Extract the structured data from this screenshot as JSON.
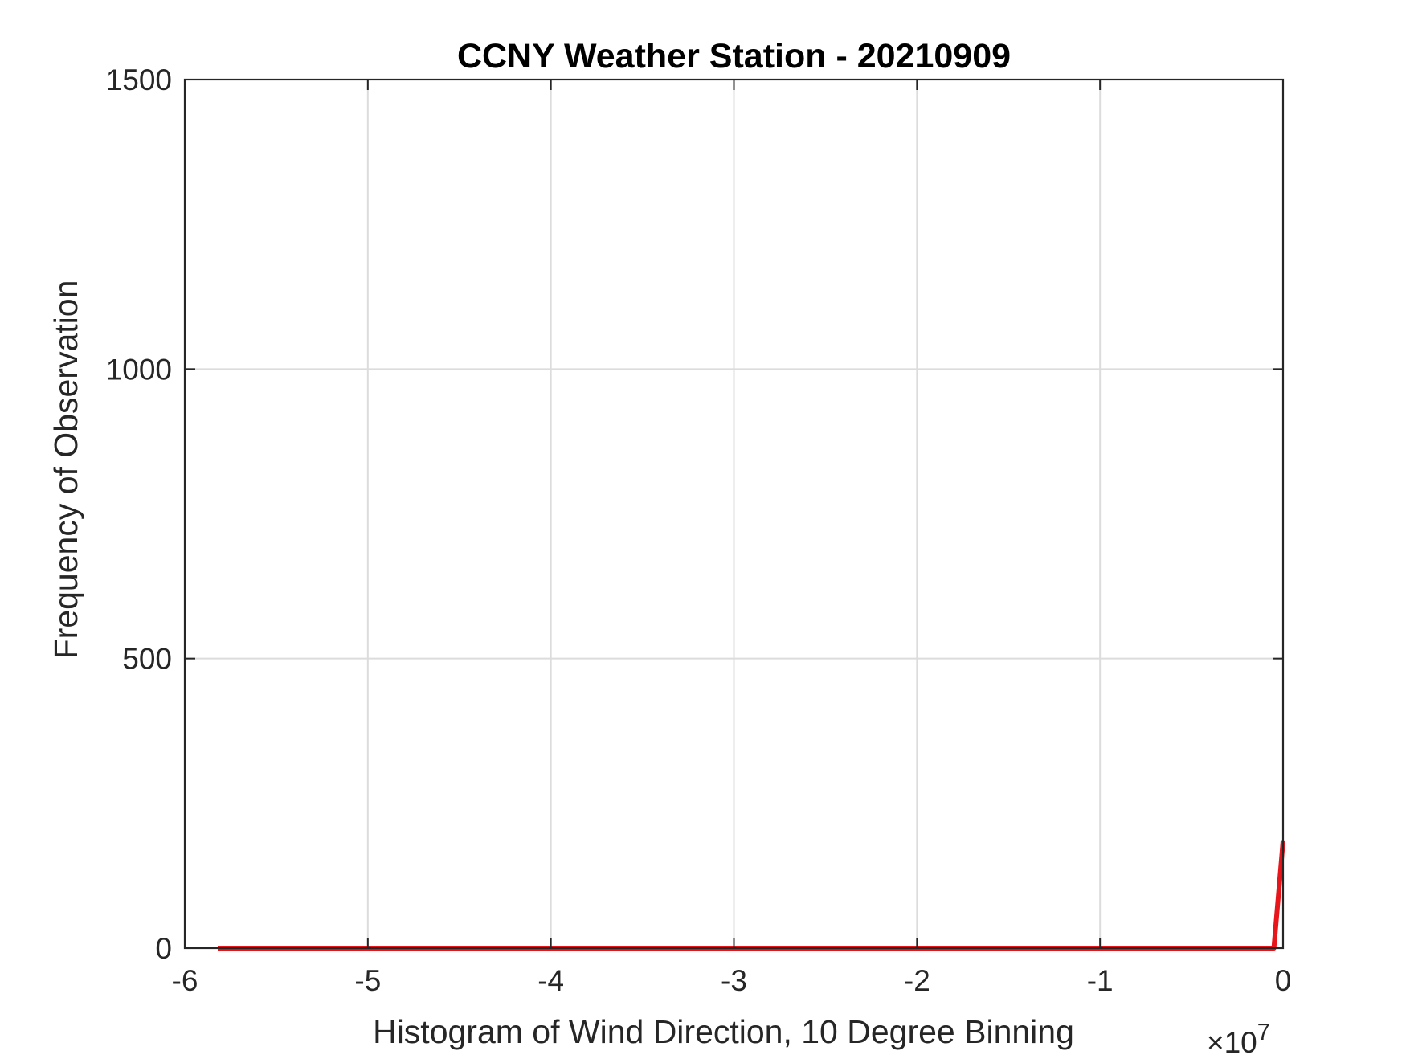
{
  "chart_data": {
    "type": "line",
    "title": "CCNY Weather Station - 20210909",
    "xlabel": "Histogram of Wind Direction, 10 Degree Binning",
    "ylabel": "Frequency of Observation",
    "x_exponent_base": "×10",
    "x_exponent_power": "7",
    "xlim": [
      -6,
      0
    ],
    "ylim": [
      0,
      1500
    ],
    "x_scale_note": "x values in units of 1e7",
    "xticks": [
      -6,
      -5,
      -4,
      -3,
      -2,
      -1,
      0
    ],
    "xtick_labels": [
      "-6",
      "-5",
      "-4",
      "-3",
      "-2",
      "-1",
      "0"
    ],
    "yticks": [
      0,
      500,
      1000,
      1500
    ],
    "ytick_labels": [
      "0",
      "500",
      "1000",
      "1500"
    ],
    "grid": true,
    "series": [
      {
        "color": "#e8161b",
        "x": [
          -5.82,
          -5.0,
          -4.0,
          -3.0,
          -2.0,
          -1.0,
          -0.05,
          0.0
        ],
        "y": [
          0,
          0,
          0,
          0,
          0,
          0,
          0,
          185
        ]
      }
    ]
  }
}
